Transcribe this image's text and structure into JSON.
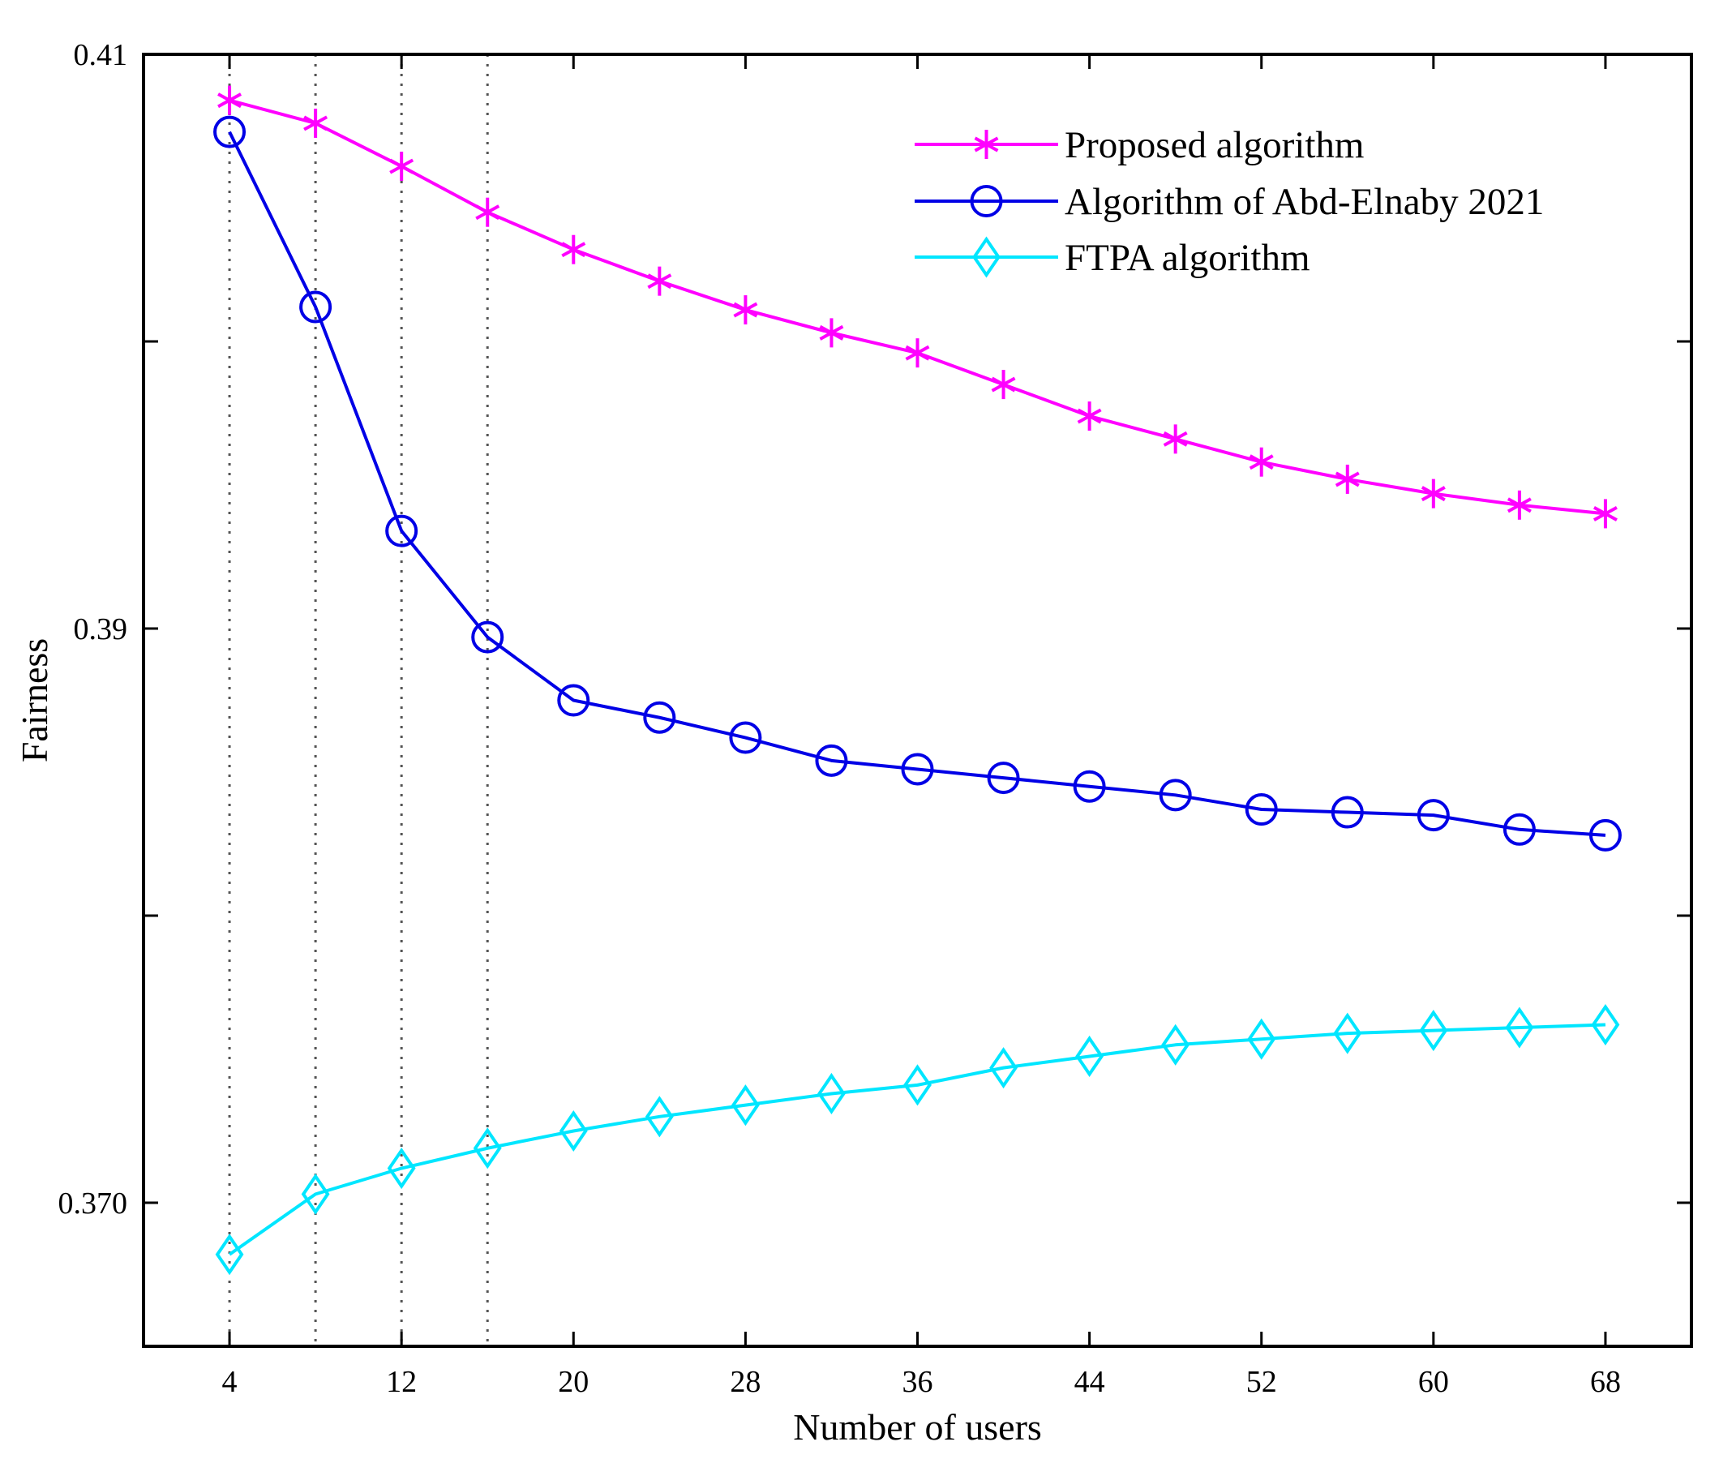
{
  "chart_data": {
    "type": "line",
    "title": "",
    "xlabel": "Number of users",
    "ylabel": "Fairness",
    "xlim": [
      0,
      72
    ],
    "ylim": [
      0.365,
      0.41
    ],
    "xticks": [
      4,
      12,
      20,
      28,
      36,
      44,
      52,
      60,
      68
    ],
    "xtick_labels": [
      "4",
      "12",
      "20",
      "28",
      "36",
      "44",
      "52",
      "60",
      "68"
    ],
    "yticks": [
      0.37,
      0.38,
      0.39,
      0.4,
      0.41
    ],
    "ytick_labels": [
      "0.370",
      "",
      "0.39",
      "",
      "0.41"
    ],
    "grid": false,
    "legend_position": "top-right",
    "reference_lines": [
      4,
      8,
      12,
      16
    ],
    "x": [
      4,
      8,
      12,
      16,
      20,
      24,
      28,
      32,
      36,
      40,
      44,
      48,
      52,
      56,
      60,
      64,
      68
    ],
    "series": [
      {
        "name": "Proposed algorithm",
        "color": "#ff00ff",
        "marker": "asterisk",
        "values": [
          0.4084,
          0.4076,
          0.4061,
          0.4045,
          0.4032,
          0.4021,
          0.4011,
          0.4003,
          0.3996,
          0.3985,
          0.3974,
          0.3966,
          0.3958,
          0.3952,
          0.3947,
          0.3943,
          0.394
        ]
      },
      {
        "name": "Algorithm of Abd-Elnaby 2021",
        "color": "#0000e6",
        "marker": "circle",
        "values": [
          0.4073,
          0.4012,
          0.3934,
          0.3897,
          0.3875,
          0.3869,
          0.3862,
          0.3854,
          0.3851,
          0.3848,
          0.3845,
          0.3842,
          0.3837,
          0.3836,
          0.3835,
          0.383,
          0.3828
        ]
      },
      {
        "name": "FTPA algorithm",
        "color": "#00e6ff",
        "marker": "diamond",
        "values": [
          0.3682,
          0.3703,
          0.3712,
          0.3719,
          0.3725,
          0.373,
          0.3734,
          0.3738,
          0.3741,
          0.3747,
          0.3751,
          0.3755,
          0.3757,
          0.3759,
          0.376,
          0.3761,
          0.3762
        ]
      }
    ]
  }
}
